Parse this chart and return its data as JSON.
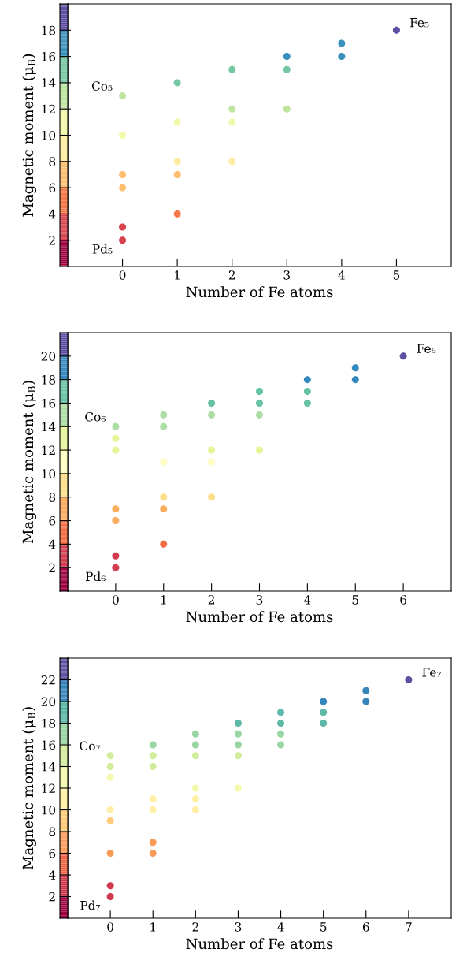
{
  "chart_data": [
    {
      "type": "scatter",
      "xlabel": "Number of Fe atoms",
      "ylabel": "Magnetic moment (μ$_{B}$)",
      "xlim": [
        -1,
        6
      ],
      "xticks": [
        0,
        1,
        2,
        3,
        4,
        5
      ],
      "ylim": [
        0,
        20
      ],
      "yticks": [
        2,
        4,
        6,
        8,
        10,
        12,
        14,
        16,
        18
      ],
      "marker": "circle",
      "series": [
        {
          "x": [
            0,
            0,
            0,
            0,
            0,
            0,
            1,
            1,
            1,
            1,
            1,
            2,
            2,
            2,
            2,
            3,
            3,
            3,
            4,
            4,
            5
          ],
          "values": [
            13,
            10,
            7,
            6,
            3,
            2,
            14,
            11,
            8,
            7,
            4,
            15,
            12,
            11,
            8,
            16,
            15,
            12,
            17,
            16,
            18
          ]
        }
      ],
      "annotations": [
        {
          "text": "Co₅",
          "x": 0,
          "y": 13
        },
        {
          "text": "Pd₅",
          "x": 0,
          "y": 2
        },
        {
          "text": "Fe₅",
          "x": 5,
          "y": 18
        }
      ]
    },
    {
      "type": "scatter",
      "xlabel": "Number of Fe atoms",
      "ylabel": "Magnetic moment (μ$_{B}$)",
      "xlim": [
        -1,
        7
      ],
      "xticks": [
        0,
        1,
        2,
        3,
        4,
        5,
        6
      ],
      "ylim": [
        0,
        22
      ],
      "yticks": [
        2,
        4,
        6,
        8,
        10,
        12,
        14,
        16,
        18,
        20
      ],
      "marker": "circle",
      "series": [
        {
          "x": [
            0,
            0,
            0,
            0,
            0,
            0,
            0,
            1,
            1,
            1,
            1,
            1,
            1,
            2,
            2,
            2,
            2,
            2,
            3,
            3,
            3,
            3,
            4,
            4,
            4,
            5,
            5,
            6
          ],
          "values": [
            14,
            13,
            12,
            7,
            6,
            3,
            2,
            15,
            14,
            11,
            8,
            7,
            4,
            16,
            15,
            12,
            11,
            8,
            17,
            16,
            15,
            12,
            18,
            17,
            16,
            19,
            18,
            20
          ]
        }
      ],
      "annotations": [
        {
          "text": "Co₆",
          "x": 0,
          "y": 14
        },
        {
          "text": "Pd₆",
          "x": 0,
          "y": 2
        },
        {
          "text": "Fe₆",
          "x": 6,
          "y": 20
        }
      ]
    },
    {
      "type": "scatter",
      "xlabel": "Number of Fe atoms",
      "ylabel": "Magnetic moment (μ$_{B}$)",
      "xlim": [
        -1,
        8
      ],
      "xticks": [
        0,
        1,
        2,
        3,
        4,
        5,
        6,
        7
      ],
      "ylim": [
        0,
        24
      ],
      "yticks": [
        2,
        4,
        6,
        8,
        10,
        12,
        14,
        16,
        18,
        20,
        22
      ],
      "marker": "circle",
      "series": [
        {
          "x": [
            0,
            0,
            0,
            0,
            0,
            0,
            0,
            0,
            1,
            1,
            1,
            1,
            1,
            1,
            1,
            2,
            2,
            2,
            2,
            2,
            2,
            3,
            3,
            3,
            3,
            3,
            4,
            4,
            4,
            4,
            5,
            5,
            5,
            6,
            6,
            7
          ],
          "values": [
            15,
            14,
            13,
            10,
            9,
            6,
            3,
            2,
            16,
            15,
            14,
            11,
            10,
            7,
            6,
            17,
            16,
            15,
            12,
            11,
            10,
            18,
            17,
            16,
            15,
            12,
            19,
            18,
            17,
            16,
            20,
            19,
            18,
            21,
            20,
            22
          ]
        }
      ],
      "annotations": [
        {
          "text": "Co₇",
          "x": 0,
          "y": 15
        },
        {
          "text": "Pd₇",
          "x": 0,
          "y": 2
        },
        {
          "text": "Fe₇",
          "x": 7,
          "y": 22
        }
      ]
    }
  ]
}
